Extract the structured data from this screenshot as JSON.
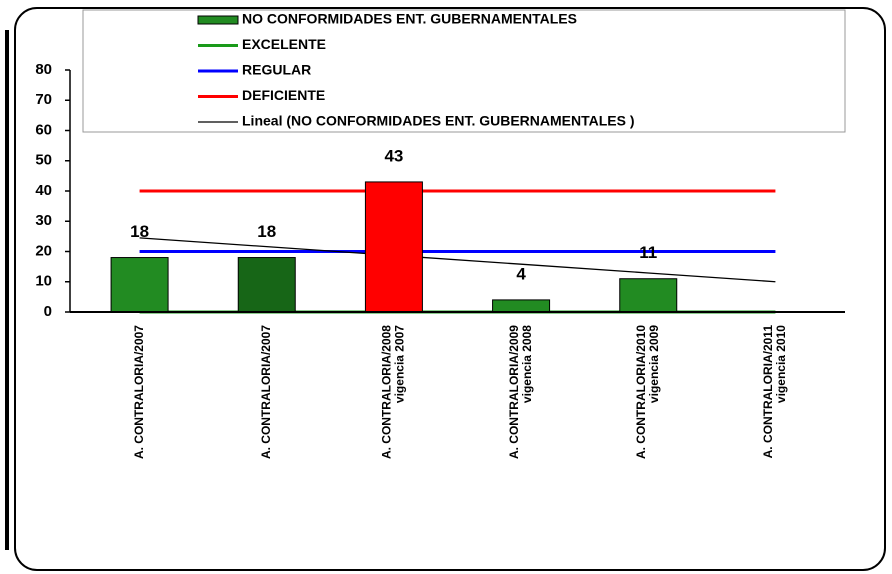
{
  "chart_data": {
    "type": "bar",
    "categories": [
      [
        "A. CONTRALORIA/2007"
      ],
      [
        "A. CONTRALORIA/2007"
      ],
      [
        "A. CONTRALORIA/2008",
        "vigencia 2007"
      ],
      [
        "A. CONTRALORIA/2009",
        "vigencia 2008"
      ],
      [
        "A. CONTRALORIA/2010",
        "vigencia 2009"
      ],
      [
        "A. CONTRALORIA/2011",
        "vigencia 2010"
      ]
    ],
    "series": [
      {
        "name": "NO CONFORMIDADES ENT. GUBERNAMENTALES",
        "type": "bar",
        "color": "#228b22",
        "colors": [
          "#228b22",
          "#176617",
          "#ff0000",
          "#228b22",
          "#228b22",
          "#228b22"
        ],
        "values": [
          18,
          18,
          43,
          4,
          11,
          0
        ],
        "value_labels": [
          "18",
          "18",
          "43",
          "4",
          "11",
          null
        ]
      },
      {
        "name": "EXCELENTE",
        "type": "line",
        "color": "#1a9a1a",
        "values": [
          0,
          0,
          0,
          0,
          0,
          0
        ]
      },
      {
        "name": "REGULAR",
        "type": "line",
        "color": "#0000ff",
        "values": [
          20,
          20,
          20,
          20,
          20,
          20
        ]
      },
      {
        "name": "DEFICIENTE",
        "type": "line",
        "color": "#ff0000",
        "values": [
          40,
          40,
          40,
          40,
          40,
          40
        ]
      },
      {
        "name": "Lineal (NO CONFORMIDADES ENT. GUBERNAMENTALES )",
        "type": "trend",
        "color": "#000000",
        "values": [
          24.5,
          21.6,
          18.7,
          15.8,
          12.9,
          10
        ]
      }
    ],
    "ylim": [
      0,
      80
    ],
    "yticks": [
      0,
      10,
      20,
      30,
      40,
      50,
      60,
      70,
      80
    ]
  }
}
